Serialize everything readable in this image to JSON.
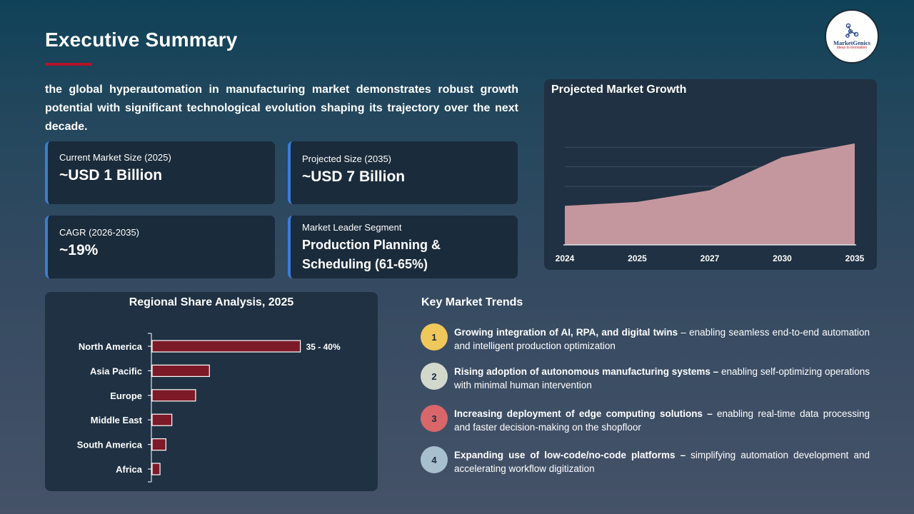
{
  "header": {
    "title": "Executive Summary",
    "logo_name": "MarketGenics",
    "logo_tagline": "Ideas to Innovation"
  },
  "intro": "the global hyperautomation in manufacturing market demonstrates robust growth potential with significant technological evolution shaping its trajectory over the next decade.",
  "cards": [
    {
      "label": "Current Market Size (2025)",
      "value": "~USD 1 Billion"
    },
    {
      "label": "Projected Size (2035)",
      "value": "~USD 7 Billion"
    },
    {
      "label": "CAGR (2026-2035)",
      "value": "~19%"
    },
    {
      "label": "Market Leader Segment",
      "value": "Production Planning & Scheduling (61-65%)"
    }
  ],
  "colors": {
    "accent_red": "#b3122a",
    "card_border": "#3b7cd8",
    "area_fill": "#c4979e",
    "bar_fill": "#7d1a27",
    "trend_1": "#f0c75a",
    "trend_2": "#d2d8cc",
    "trend_3": "#d9676a",
    "trend_4": "#a8bfcf"
  },
  "chart_data": [
    {
      "type": "area",
      "title": "Projected Market Growth",
      "x": [
        "2024",
        "2025",
        "2027",
        "2030",
        "2035"
      ],
      "values": [
        2.0,
        2.2,
        2.8,
        4.5,
        5.2
      ],
      "ylim": [
        0,
        6
      ],
      "grid": true,
      "note": "y-axis unlabeled; values are estimated relative levels"
    },
    {
      "type": "bar",
      "orientation": "horizontal",
      "title": "Regional Share Analysis, 2025",
      "categories": [
        "North America",
        "Asia Pacific",
        "Europe",
        "Middle East",
        "South America",
        "Africa"
      ],
      "values": [
        37.5,
        14.5,
        11.0,
        5.0,
        3.5,
        2.0
      ],
      "data_labels": [
        "35 - 40%",
        "",
        "",
        "",
        "",
        ""
      ],
      "xlim": [
        0,
        56
      ]
    }
  ],
  "trends": {
    "title": "Key Market Trends",
    "items": [
      {
        "num": "1",
        "bold": "Growing integration of AI, RPA, and digital twins",
        "rest": " – enabling seamless end-to-end automation and intelligent production optimization"
      },
      {
        "num": "2",
        "bold": "Rising adoption of autonomous manufacturing systems –",
        "rest": " enabling self-optimizing operations with minimal human intervention"
      },
      {
        "num": "3",
        "bold": "Increasing deployment of edge computing solutions –",
        "rest": " enabling real-time data processing and faster decision-making on the shopfloor"
      },
      {
        "num": "4",
        "bold": "Expanding use of low-code/no-code platforms –",
        "rest": " simplifying automation development and accelerating workflow digitization"
      }
    ]
  }
}
